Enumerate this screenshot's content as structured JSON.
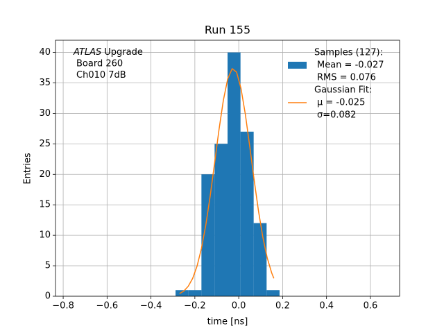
{
  "chart_data": {
    "type": "histogram",
    "title": "Run 155",
    "xlabel": "time [ns]",
    "ylabel": "Entries",
    "annotation": {
      "italic": "ATLAS",
      "lines": [
        "Upgrade",
        "Board 260",
        "Ch010 7dB"
      ]
    },
    "xlim": [
      -0.835,
      0.733
    ],
    "ylim": [
      0,
      42
    ],
    "xticks": [
      {
        "value": -0.8,
        "label": "−0.8"
      },
      {
        "value": -0.6,
        "label": "−0.6"
      },
      {
        "value": -0.4,
        "label": "−0.4"
      },
      {
        "value": -0.2,
        "label": "−0.2"
      },
      {
        "value": 0.0,
        "label": "0.0"
      },
      {
        "value": 0.2,
        "label": "0.2"
      },
      {
        "value": 0.4,
        "label": "0.4"
      },
      {
        "value": 0.6,
        "label": "0.6"
      }
    ],
    "yticks": [
      0,
      5,
      10,
      15,
      20,
      25,
      30,
      35,
      40
    ],
    "grid": true,
    "legend": "upper right",
    "series": [
      {
        "type": "histogram",
        "name": [
          "Samples (127):",
          "Mean = -0.027",
          "RMS = 0.076"
        ],
        "color": "#1f77b4",
        "bins": [
          -0.288,
          -0.229,
          -0.17,
          -0.11,
          -0.051,
          0.008,
          0.068,
          0.127,
          0.186
        ],
        "values": [
          1,
          1,
          20,
          25,
          40,
          27,
          12,
          1
        ]
      },
      {
        "type": "line",
        "name": [
          "Gaussian Fit:",
          "μ = -0.025",
          "σ=0.082"
        ],
        "color": "#ff7f0e",
        "x": [
          -0.27,
          -0.25,
          -0.23,
          -0.21,
          -0.19,
          -0.17,
          -0.15,
          -0.13,
          -0.11,
          -0.09,
          -0.07,
          -0.05,
          -0.03,
          -0.01,
          0.01,
          0.03,
          0.05,
          0.07,
          0.09,
          0.11,
          0.13,
          0.15,
          0.16
        ],
        "values": [
          0.43,
          0.87,
          1.64,
          2.93,
          4.94,
          7.84,
          11.7,
          16.47,
          21.86,
          27.32,
          32.17,
          35.7,
          37.33,
          36.78,
          34.14,
          29.87,
          24.62,
          19.12,
          13.99,
          9.65,
          6.26,
          3.84,
          2.93
        ]
      }
    ]
  }
}
